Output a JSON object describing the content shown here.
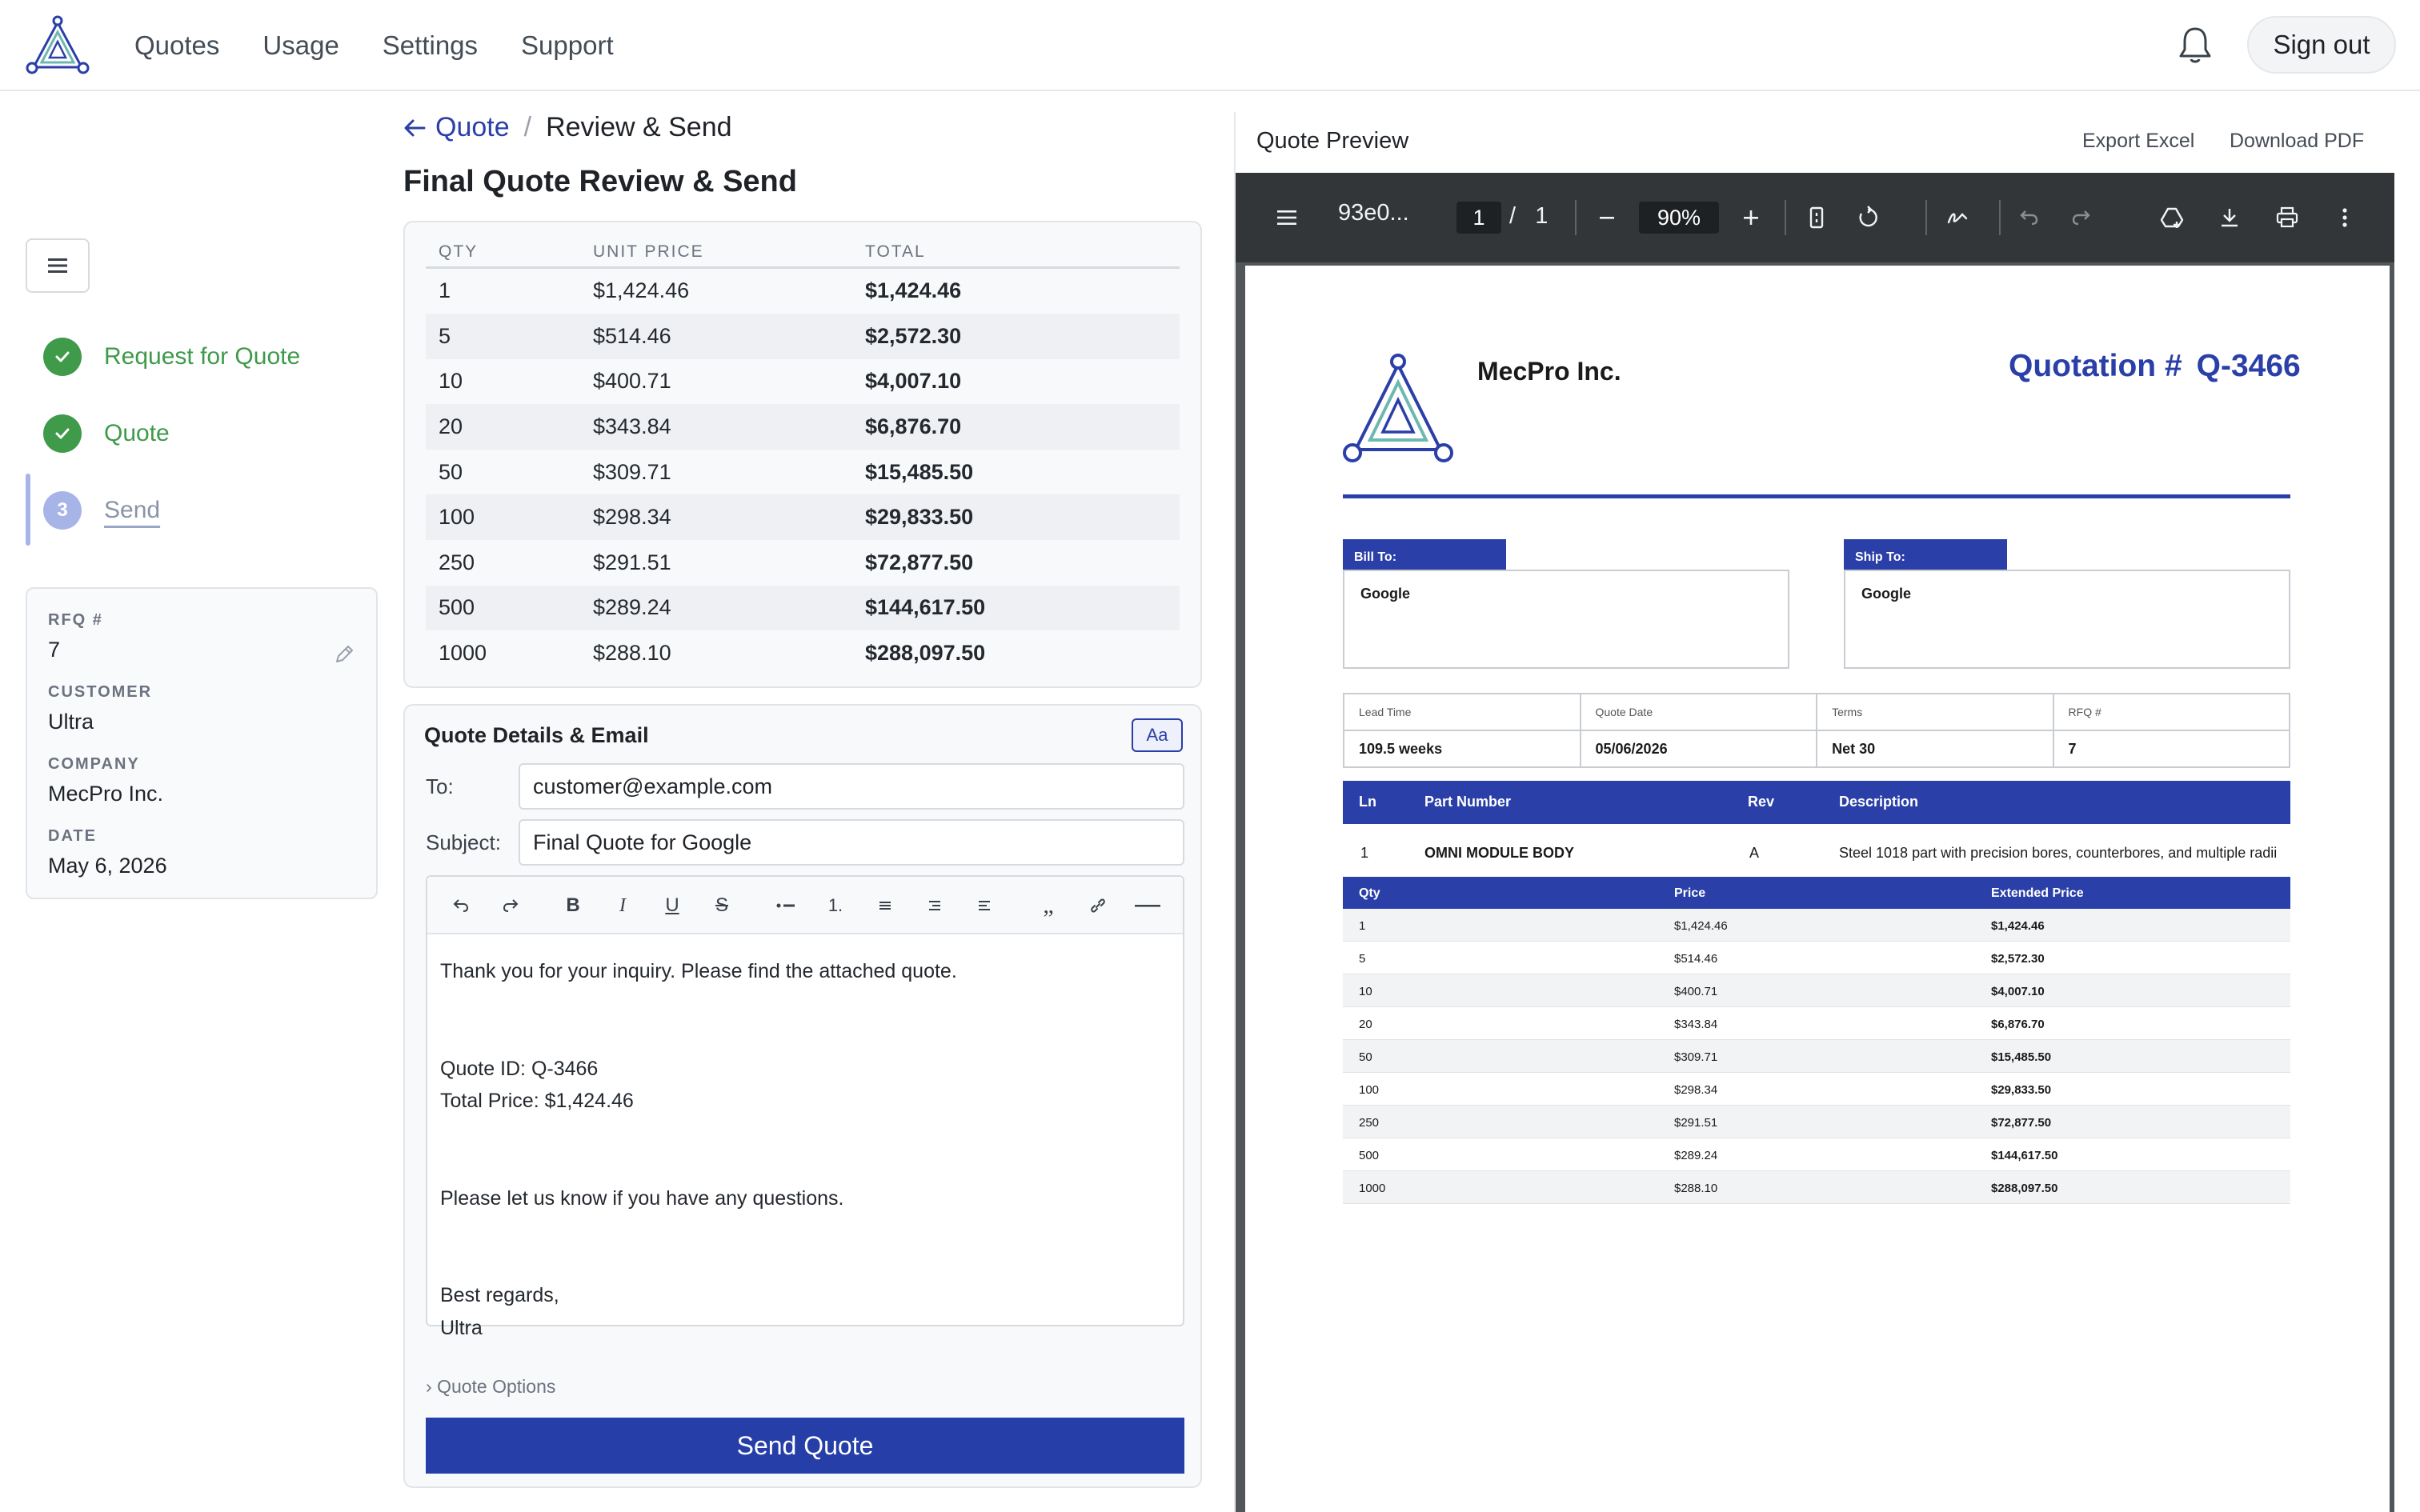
{
  "nav": {
    "links": [
      "Quotes",
      "Usage",
      "Settings",
      "Support"
    ],
    "sign_out": "Sign out"
  },
  "sidebar": {
    "steps": [
      {
        "label": "Request for Quote",
        "state": "done"
      },
      {
        "label": "Quote",
        "state": "done"
      },
      {
        "label": "Send",
        "state": "current",
        "number": "3"
      }
    ],
    "info": {
      "rfq_label": "RFQ #",
      "rfq_value": "7",
      "customer_label": "CUSTOMER",
      "customer_value": "Ultra",
      "company_label": "COMPANY",
      "company_value": "MecPro Inc.",
      "date_label": "DATE",
      "date_value": "May 6, 2026"
    }
  },
  "breadcrumb": {
    "back": "Quote",
    "separator": "/",
    "current": "Review & Send"
  },
  "page_title": "Final Quote Review & Send",
  "price_table": {
    "headers": [
      "QTY",
      "UNIT PRICE",
      "TOTAL"
    ],
    "rows": [
      [
        "1",
        "$1,424.46",
        "$1,424.46"
      ],
      [
        "5",
        "$514.46",
        "$2,572.30"
      ],
      [
        "10",
        "$400.71",
        "$4,007.10"
      ],
      [
        "20",
        "$343.84",
        "$6,876.70"
      ],
      [
        "50",
        "$309.71",
        "$15,485.50"
      ],
      [
        "100",
        "$298.34",
        "$29,833.50"
      ],
      [
        "250",
        "$291.51",
        "$72,877.50"
      ],
      [
        "500",
        "$289.24",
        "$144,617.50"
      ],
      [
        "1000",
        "$288.10",
        "$288,097.50"
      ]
    ]
  },
  "details": {
    "title": "Quote Details & Email",
    "font_button": "Aa",
    "to_label": "To:",
    "to_value": "customer@example.com",
    "subject_label": "Subject:",
    "subject_value": "Final Quote for Google",
    "body_lines": [
      "Thank you for your inquiry. Please find the attached quote.",
      "",
      "",
      "Quote ID: Q-3466",
      "Total Price: $1,424.46",
      "",
      "",
      "Please let us know if you have any questions.",
      "",
      "",
      "Best regards,",
      "Ultra"
    ],
    "quote_options": "Quote Options",
    "send_button": "Send Quote"
  },
  "preview": {
    "title": "Quote Preview",
    "export_excel": "Export Excel",
    "download_pdf": "Download PDF",
    "toolbar": {
      "filename": "93e0...",
      "page_current": "1",
      "page_sep": "/",
      "page_total": "1",
      "zoom": "90%"
    }
  },
  "document": {
    "company": "MecPro Inc.",
    "quotation_label": "Quotation #",
    "quotation_number": "Q-3466",
    "bill_to_label": "Bill To:",
    "bill_to_value": "Google",
    "ship_to_label": "Ship To:",
    "ship_to_value": "Google",
    "meta_headers": [
      "Lead Time",
      "Quote Date",
      "Terms",
      "RFQ #"
    ],
    "meta_values": [
      "109.5 weeks",
      "05/06/2026",
      "Net 30",
      "7"
    ],
    "line_headers": [
      "Ln",
      "Part Number",
      "Rev",
      "Description"
    ],
    "line_row": [
      "1",
      "OMNI MODULE BODY",
      "A",
      "Steel 1018 part with precision bores, counterbores, and multiple radii"
    ],
    "qty_headers": [
      "Qty",
      "Price",
      "Extended Price"
    ],
    "qty_rows": [
      [
        "1",
        "$1,424.46",
        "$1,424.46"
      ],
      [
        "5",
        "$514.46",
        "$2,572.30"
      ],
      [
        "10",
        "$400.71",
        "$4,007.10"
      ],
      [
        "20",
        "$343.84",
        "$6,876.70"
      ],
      [
        "50",
        "$309.71",
        "$15,485.50"
      ],
      [
        "100",
        "$298.34",
        "$29,833.50"
      ],
      [
        "250",
        "$291.51",
        "$72,877.50"
      ],
      [
        "500",
        "$289.24",
        "$144,617.50"
      ],
      [
        "1000",
        "$288.10",
        "$288,097.50"
      ]
    ]
  },
  "colors": {
    "brand_blue": "#2a3fa8",
    "success_green": "#3f9a4a",
    "pdf_toolbar": "#323639"
  }
}
